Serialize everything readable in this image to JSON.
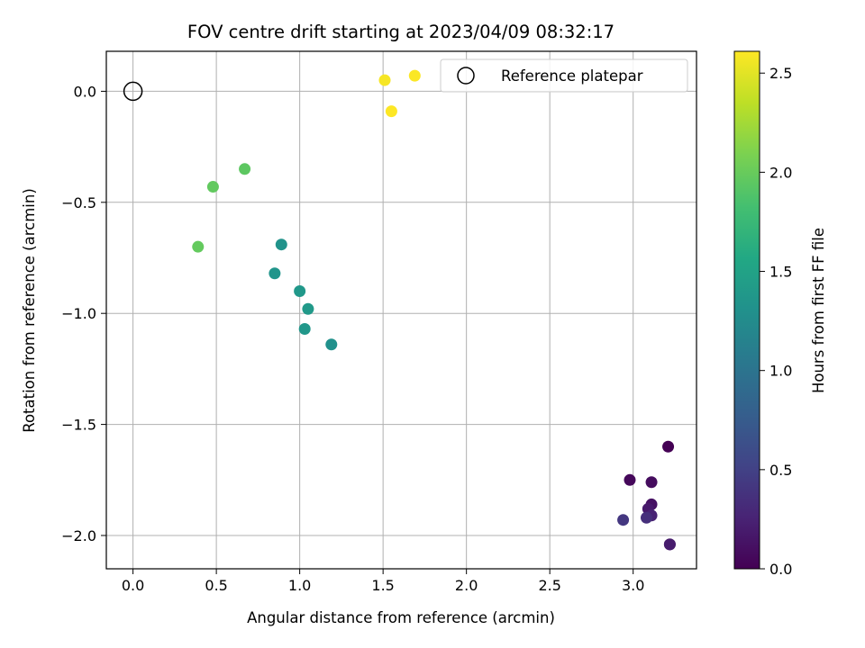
{
  "chart_data": {
    "type": "scatter",
    "title": "FOV centre drift starting at 2023/04/09 08:32:17",
    "xlabel": "Angular distance from reference (arcmin)",
    "ylabel": "Rotation from reference (arcmin)",
    "xlim": [
      -0.16,
      3.38
    ],
    "ylim": [
      -2.15,
      0.18
    ],
    "xticks": [
      0.0,
      0.5,
      1.0,
      1.5,
      2.0,
      2.5,
      3.0
    ],
    "yticks": [
      0.0,
      -0.5,
      -1.0,
      -1.5,
      -2.0
    ],
    "xtick_labels": [
      "0.0",
      "0.5",
      "1.0",
      "1.5",
      "2.0",
      "2.5",
      "3.0"
    ],
    "ytick_labels": [
      "0.0",
      "−0.5",
      "−1.0",
      "−1.5",
      "−2.0"
    ],
    "grid": true,
    "legend": {
      "position": "top-right",
      "entries": [
        "Reference platepar"
      ]
    },
    "reference_point": {
      "name": "Reference platepar",
      "x": 0.0,
      "y": 0.0,
      "marker": "open-circle"
    },
    "colormap": "viridis",
    "colorbar": {
      "label": "Hours from first FF file",
      "range": [
        0.0,
        2.61
      ],
      "ticks": [
        0.0,
        0.5,
        1.0,
        1.5,
        2.0,
        2.5
      ],
      "tick_labels": [
        "0.0",
        "0.5",
        "1.0",
        "1.5",
        "2.0",
        "2.5"
      ]
    },
    "points": [
      {
        "x": 3.21,
        "y": -1.6,
        "c": 0.0
      },
      {
        "x": 2.98,
        "y": -1.75,
        "c": 0.05
      },
      {
        "x": 3.11,
        "y": -1.76,
        "c": 0.08
      },
      {
        "x": 3.11,
        "y": -1.86,
        "c": 0.12
      },
      {
        "x": 3.09,
        "y": -1.88,
        "c": 0.18
      },
      {
        "x": 3.11,
        "y": -1.91,
        "c": 0.25
      },
      {
        "x": 3.08,
        "y": -1.92,
        "c": 0.35
      },
      {
        "x": 2.94,
        "y": -1.93,
        "c": 0.42
      },
      {
        "x": 3.22,
        "y": -2.04,
        "c": 0.1
      },
      {
        "x": 3.22,
        "y": -2.04,
        "c": 0.2
      },
      {
        "x": 0.89,
        "y": -0.69,
        "c": 1.33
      },
      {
        "x": 0.85,
        "y": -0.82,
        "c": 1.35
      },
      {
        "x": 1.0,
        "y": -0.9,
        "c": 1.38
      },
      {
        "x": 1.05,
        "y": -0.98,
        "c": 1.4
      },
      {
        "x": 1.03,
        "y": -1.07,
        "c": 1.37
      },
      {
        "x": 1.19,
        "y": -1.14,
        "c": 1.3
      },
      {
        "x": 0.67,
        "y": -0.35,
        "c": 1.95
      },
      {
        "x": 0.48,
        "y": -0.43,
        "c": 1.97
      },
      {
        "x": 0.39,
        "y": -0.7,
        "c": 1.98
      },
      {
        "x": 1.51,
        "y": 0.05,
        "c": 2.58
      },
      {
        "x": 1.69,
        "y": 0.07,
        "c": 2.6
      },
      {
        "x": 1.55,
        "y": -0.09,
        "c": 2.61
      }
    ]
  }
}
